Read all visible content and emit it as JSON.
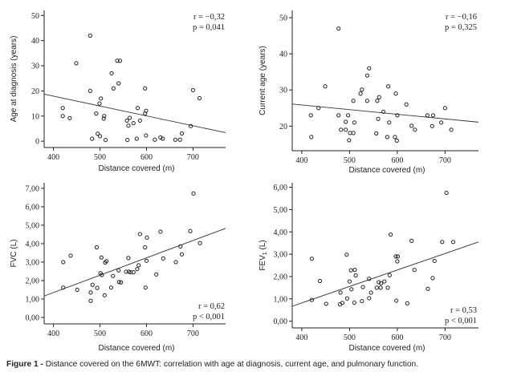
{
  "caption": {
    "label": "Figure 1 -",
    "text": "Distance covered on the 6MWT: correlation with age at diagnosis, current age, and pulmonary function."
  },
  "chart_data": [
    {
      "id": "age-diagnosis",
      "type": "scatter",
      "title": "",
      "xlabel": "Distance covered (m)",
      "ylabel": "Age at diagnosis (years)",
      "xlim": [
        380,
        770
      ],
      "ylim": [
        -2.5,
        52
      ],
      "xticks": [
        400,
        500,
        600,
        700
      ],
      "yticks": [
        0,
        10,
        20,
        30,
        40,
        50
      ],
      "ytick_labels": [
        "0",
        "10",
        "20",
        "30",
        "40",
        "50"
      ],
      "stats": [
        "r = −0,32",
        "p = 0,041"
      ],
      "stats_position": "top-right",
      "fit_line": {
        "x": [
          380,
          770
        ],
        "y": [
          18.7,
          3.4
        ]
      },
      "points": [
        [
          420,
          13.2
        ],
        [
          420,
          10
        ],
        [
          435,
          9.2
        ],
        [
          449,
          31
        ],
        [
          479,
          42
        ],
        [
          479,
          20
        ],
        [
          483,
          1
        ],
        [
          492,
          11
        ],
        [
          495,
          3
        ],
        [
          499,
          15
        ],
        [
          500,
          2
        ],
        [
          502,
          17
        ],
        [
          508,
          9
        ],
        [
          509,
          10
        ],
        [
          512,
          0.5
        ],
        [
          525,
          27
        ],
        [
          529,
          21
        ],
        [
          537,
          32
        ],
        [
          540,
          23
        ],
        [
          543,
          32
        ],
        [
          558,
          8.2
        ],
        [
          559,
          0.5
        ],
        [
          561,
          6.2
        ],
        [
          564,
          9.3
        ],
        [
          572,
          7.2
        ],
        [
          579,
          1
        ],
        [
          581,
          13.2
        ],
        [
          586,
          8.2
        ],
        [
          597,
          21
        ],
        [
          597,
          11
        ],
        [
          599,
          12.1
        ],
        [
          599,
          2.3
        ],
        [
          618,
          0.6
        ],
        [
          630,
          1.5
        ],
        [
          635,
          1
        ],
        [
          662,
          0.6
        ],
        [
          672,
          0.6
        ],
        [
          676,
          3.1
        ],
        [
          695,
          6
        ],
        [
          700,
          20.3
        ],
        [
          714,
          17.1
        ]
      ]
    },
    {
      "id": "current-age",
      "type": "scatter",
      "title": "",
      "xlabel": "Distance covered (m)",
      "ylabel": "Current age (years)",
      "xlim": [
        380,
        770
      ],
      "ylim": [
        13.2,
        52
      ],
      "xticks": [
        400,
        500,
        600,
        700
      ],
      "yticks": [
        20,
        30,
        40,
        50
      ],
      "ytick_labels": [
        "20",
        "30",
        "40",
        "50"
      ],
      "stats": [
        "r = −0,16",
        "p = 0,325"
      ],
      "stats_position": "top-right",
      "fit_line": {
        "x": [
          380,
          770
        ],
        "y": [
          26.1,
          21.1
        ]
      },
      "points": [
        [
          419,
          23
        ],
        [
          420,
          17
        ],
        [
          435,
          25
        ],
        [
          449,
          31
        ],
        [
          477,
          47
        ],
        [
          477,
          23
        ],
        [
          482,
          19
        ],
        [
          492,
          21.2
        ],
        [
          492,
          19
        ],
        [
          497,
          23
        ],
        [
          499,
          16.1
        ],
        [
          501,
          18.1
        ],
        [
          508,
          27
        ],
        [
          508,
          18.1
        ],
        [
          510,
          21
        ],
        [
          523,
          29
        ],
        [
          526,
          30.1
        ],
        [
          537,
          34
        ],
        [
          537,
          27
        ],
        [
          541,
          36
        ],
        [
          556,
          18
        ],
        [
          558,
          27
        ],
        [
          560,
          22
        ],
        [
          562,
          28
        ],
        [
          571,
          24
        ],
        [
          579,
          17
        ],
        [
          581,
          31
        ],
        [
          583,
          21
        ],
        [
          595,
          17
        ],
        [
          597,
          29
        ],
        [
          599,
          16
        ],
        [
          600,
          23
        ],
        [
          619,
          26
        ],
        [
          630,
          20.1
        ],
        [
          637,
          19
        ],
        [
          663,
          23
        ],
        [
          673,
          20
        ],
        [
          675,
          23
        ],
        [
          692,
          21
        ],
        [
          700,
          25
        ],
        [
          713,
          19
        ]
      ]
    },
    {
      "id": "fvc",
      "type": "scatter",
      "title": "",
      "xlabel": "Distance covered (m)",
      "ylabel": "FVC (L)",
      "xlim": [
        380,
        770
      ],
      "ylim": [
        -0.35,
        7.3
      ],
      "xticks": [
        400,
        500,
        600,
        700
      ],
      "yticks": [
        0,
        1,
        2,
        3,
        4,
        5,
        6,
        7
      ],
      "ytick_labels": [
        "0,00",
        "1,00",
        "2,00",
        "3,00",
        "4,00",
        "5,00",
        "6,00",
        "7,00"
      ],
      "stats": [
        "r = 0,62",
        "p < 0,001"
      ],
      "stats_position": "bottom-right",
      "fit_line": {
        "x": [
          380,
          770
        ],
        "y": [
          1.16,
          4.83
        ]
      },
      "points": [
        [
          421,
          3.0
        ],
        [
          421,
          1.62
        ],
        [
          437,
          3.35
        ],
        [
          451,
          1.5
        ],
        [
          480,
          0.9
        ],
        [
          480,
          1.35
        ],
        [
          484,
          1.77
        ],
        [
          493,
          3.8
        ],
        [
          494,
          1.6
        ],
        [
          501,
          2.4
        ],
        [
          503,
          3.25
        ],
        [
          504,
          2.3
        ],
        [
          510,
          1.2
        ],
        [
          511,
          2.98
        ],
        [
          514,
          3.05
        ],
        [
          524,
          1.62
        ],
        [
          528,
          2.25
        ],
        [
          540,
          2.55
        ],
        [
          541,
          1.92
        ],
        [
          545,
          1.9
        ],
        [
          556,
          2.48
        ],
        [
          561,
          3.22
        ],
        [
          562,
          2.48
        ],
        [
          566,
          2.45
        ],
        [
          572,
          2.45
        ],
        [
          580,
          2.62
        ],
        [
          583,
          2.83
        ],
        [
          586,
          4.52
        ],
        [
          597,
          3.8
        ],
        [
          598,
          1.62
        ],
        [
          600,
          3.07
        ],
        [
          601,
          4.33
        ],
        [
          621,
          2.33
        ],
        [
          630,
          4.65
        ],
        [
          636,
          3.2
        ],
        [
          663,
          3.0
        ],
        [
          673,
          3.85
        ],
        [
          676,
          3.42
        ],
        [
          694,
          4.68
        ],
        [
          701,
          6.72
        ],
        [
          715,
          4.03
        ]
      ]
    },
    {
      "id": "fev1",
      "type": "scatter",
      "title": "",
      "xlabel": "Distance covered (m)",
      "ylabel": "FEV1 (L)",
      "ylabel_main": "FEV",
      "ylabel_sub": "1",
      "ylabel_unit": "(L)",
      "xlim": [
        380,
        770
      ],
      "ylim": [
        -0.3,
        6.2
      ],
      "xticks": [
        400,
        500,
        600,
        700
      ],
      "yticks": [
        0,
        1,
        2,
        3,
        4,
        5,
        6
      ],
      "ytick_labels": [
        "0,00",
        "1,00",
        "2,00",
        "3,00",
        "4,00",
        "5,00",
        "6,00"
      ],
      "stats": [
        "r = 0,53",
        "p < 0,001"
      ],
      "stats_position": "bottom-right",
      "fit_line": {
        "x": [
          380,
          770
        ],
        "y": [
          0.67,
          3.55
        ]
      },
      "points": [
        [
          421,
          2.8
        ],
        [
          421,
          0.95
        ],
        [
          438,
          1.8
        ],
        [
          451,
          0.78
        ],
        [
          480,
          0.75
        ],
        [
          481,
          1.28
        ],
        [
          485,
          0.82
        ],
        [
          494,
          2.98
        ],
        [
          495,
          1.02
        ],
        [
          500,
          1.78
        ],
        [
          503,
          2.28
        ],
        [
          504,
          1.43
        ],
        [
          510,
          0.83
        ],
        [
          511,
          2.3
        ],
        [
          513,
          2.05
        ],
        [
          526,
          0.9
        ],
        [
          528,
          1.53
        ],
        [
          541,
          1.9
        ],
        [
          541,
          1.03
        ],
        [
          545,
          1.28
        ],
        [
          557,
          1.5
        ],
        [
          561,
          1.75
        ],
        [
          565,
          1.5
        ],
        [
          566,
          1.7
        ],
        [
          573,
          1.78
        ],
        [
          580,
          1.5
        ],
        [
          584,
          2.06
        ],
        [
          586,
          3.88
        ],
        [
          597,
          2.9
        ],
        [
          598,
          0.92
        ],
        [
          601,
          2.9
        ],
        [
          600,
          2.68
        ],
        [
          621,
          0.8
        ],
        [
          630,
          3.6
        ],
        [
          636,
          2.3
        ],
        [
          664,
          1.45
        ],
        [
          674,
          1.93
        ],
        [
          678,
          2.7
        ],
        [
          694,
          3.55
        ],
        [
          703,
          5.75
        ],
        [
          717,
          3.55
        ]
      ]
    }
  ]
}
